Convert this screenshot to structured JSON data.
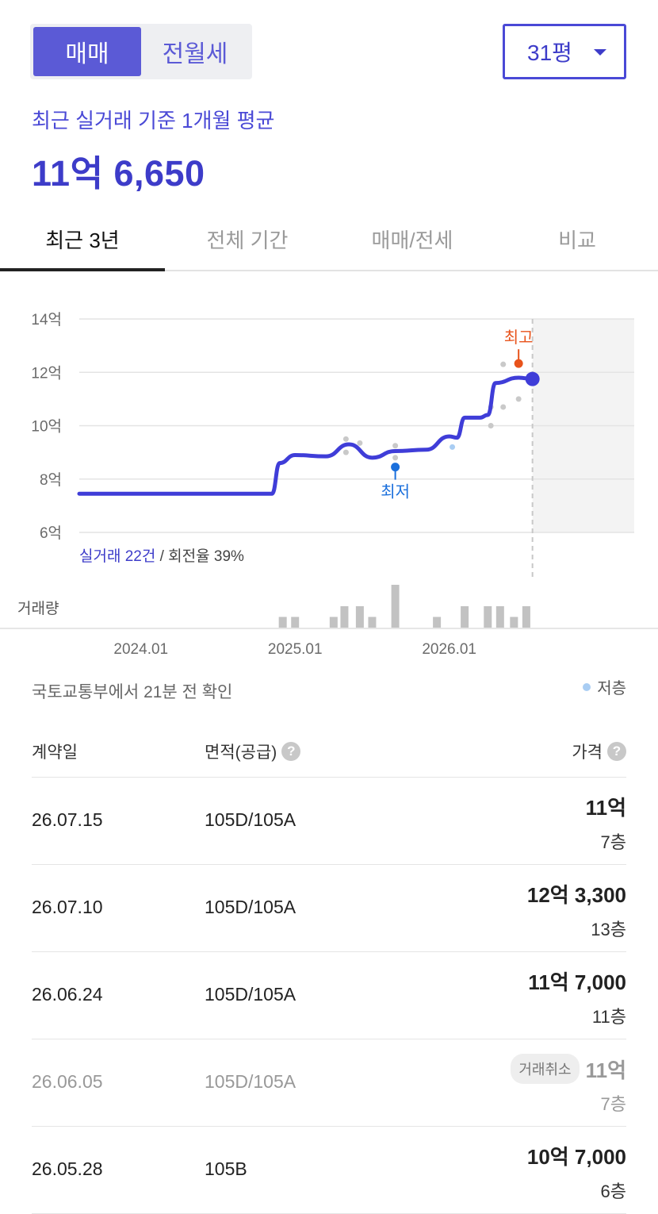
{
  "deal_type": {
    "active": "매매",
    "inactive": "전월세"
  },
  "size_selector": {
    "value": "31평"
  },
  "summary": {
    "label": "최근 실거래 기준 1개월 평균",
    "value": "11억 6,650"
  },
  "tabs": [
    "최근 3년",
    "전체 기간",
    "매매/전세",
    "비교"
  ],
  "chart_stats": {
    "count": "실거래 22건",
    "rest": " / 회전율 39%"
  },
  "volume_label": "거래량",
  "source": "국토교통부에서 21분 전 확인",
  "legend": "저층",
  "table_headers": {
    "date": "계약일",
    "area": "면적(공급)",
    "price": "가격"
  },
  "rows": [
    {
      "date": "26.07.15",
      "area": "105D/105A",
      "price": "11억",
      "floor": "7층",
      "badge": ""
    },
    {
      "date": "26.07.10",
      "area": "105D/105A",
      "price": "12억 3,300",
      "floor": "13층",
      "badge": ""
    },
    {
      "date": "26.06.24",
      "area": "105D/105A",
      "price": "11억 7,000",
      "floor": "11층",
      "badge": ""
    },
    {
      "date": "26.06.05",
      "area": "105D/105A",
      "price": "11억",
      "floor": "7층",
      "badge": "거래취소"
    },
    {
      "date": "26.05.28",
      "area": "105B",
      "price": "10억 7,000",
      "floor": "6층",
      "badge": ""
    }
  ],
  "colors": {
    "accent": "#3d3cc9",
    "line": "#3f3dd8",
    "high": "#e8531b",
    "low": "#1a6fdc",
    "low_floor": "#a9cdf3"
  },
  "chart_data": {
    "type": "line",
    "ylim": [
      6,
      14
    ],
    "y_ticks": [
      "14억",
      "12억",
      "10억",
      "8억",
      "6억"
    ],
    "y_tick_values": [
      14,
      12,
      10,
      8,
      6
    ],
    "x_tick_labels": [
      "2024.01",
      "2025.01",
      "2026.01"
    ],
    "x_tick_values": [
      2024.0,
      2025.0,
      2026.0
    ],
    "xlim": [
      2023.6,
      2027.2
    ],
    "trend": [
      [
        2023.6,
        7.45
      ],
      [
        2024.5,
        7.45
      ],
      [
        2024.85,
        7.45
      ],
      [
        2024.9,
        8.6
      ],
      [
        2025.0,
        8.9
      ],
      [
        2025.2,
        8.85
      ],
      [
        2025.35,
        9.3
      ],
      [
        2025.5,
        8.8
      ],
      [
        2025.65,
        9.05
      ],
      [
        2025.85,
        9.1
      ],
      [
        2026.0,
        9.6
      ],
      [
        2026.05,
        9.55
      ],
      [
        2026.1,
        10.3
      ],
      [
        2026.2,
        10.3
      ],
      [
        2026.25,
        10.4
      ],
      [
        2026.3,
        11.6
      ],
      [
        2026.45,
        11.8
      ],
      [
        2026.54,
        11.75
      ]
    ],
    "points": [
      [
        2025.33,
        9.5
      ],
      [
        2025.33,
        9.0
      ],
      [
        2025.42,
        9.35
      ],
      [
        2025.65,
        9.25
      ],
      [
        2025.65,
        8.8
      ],
      [
        2026.27,
        10.0
      ],
      [
        2026.27,
        10.7
      ],
      [
        2026.35,
        10.7
      ],
      [
        2026.35,
        12.3
      ],
      [
        2026.45,
        11.0
      ]
    ],
    "low_floor_points": [
      [
        2026.02,
        9.2
      ]
    ],
    "high": {
      "x": 2026.45,
      "y": 12.33,
      "label": "최고"
    },
    "low": {
      "x": 2025.65,
      "y": 8.45,
      "label": "최저"
    },
    "current": {
      "x": 2026.54,
      "y": 11.75
    },
    "volume": [
      [
        2024.92,
        1
      ],
      [
        2025.0,
        1
      ],
      [
        2025.25,
        1
      ],
      [
        2025.32,
        2
      ],
      [
        2025.42,
        2
      ],
      [
        2025.5,
        1
      ],
      [
        2025.65,
        4
      ],
      [
        2025.92,
        1
      ],
      [
        2026.1,
        2
      ],
      [
        2026.25,
        2
      ],
      [
        2026.33,
        2
      ],
      [
        2026.42,
        1
      ],
      [
        2026.5,
        2
      ]
    ],
    "volume_max": 4,
    "forecast_shade_from": 2026.54
  }
}
